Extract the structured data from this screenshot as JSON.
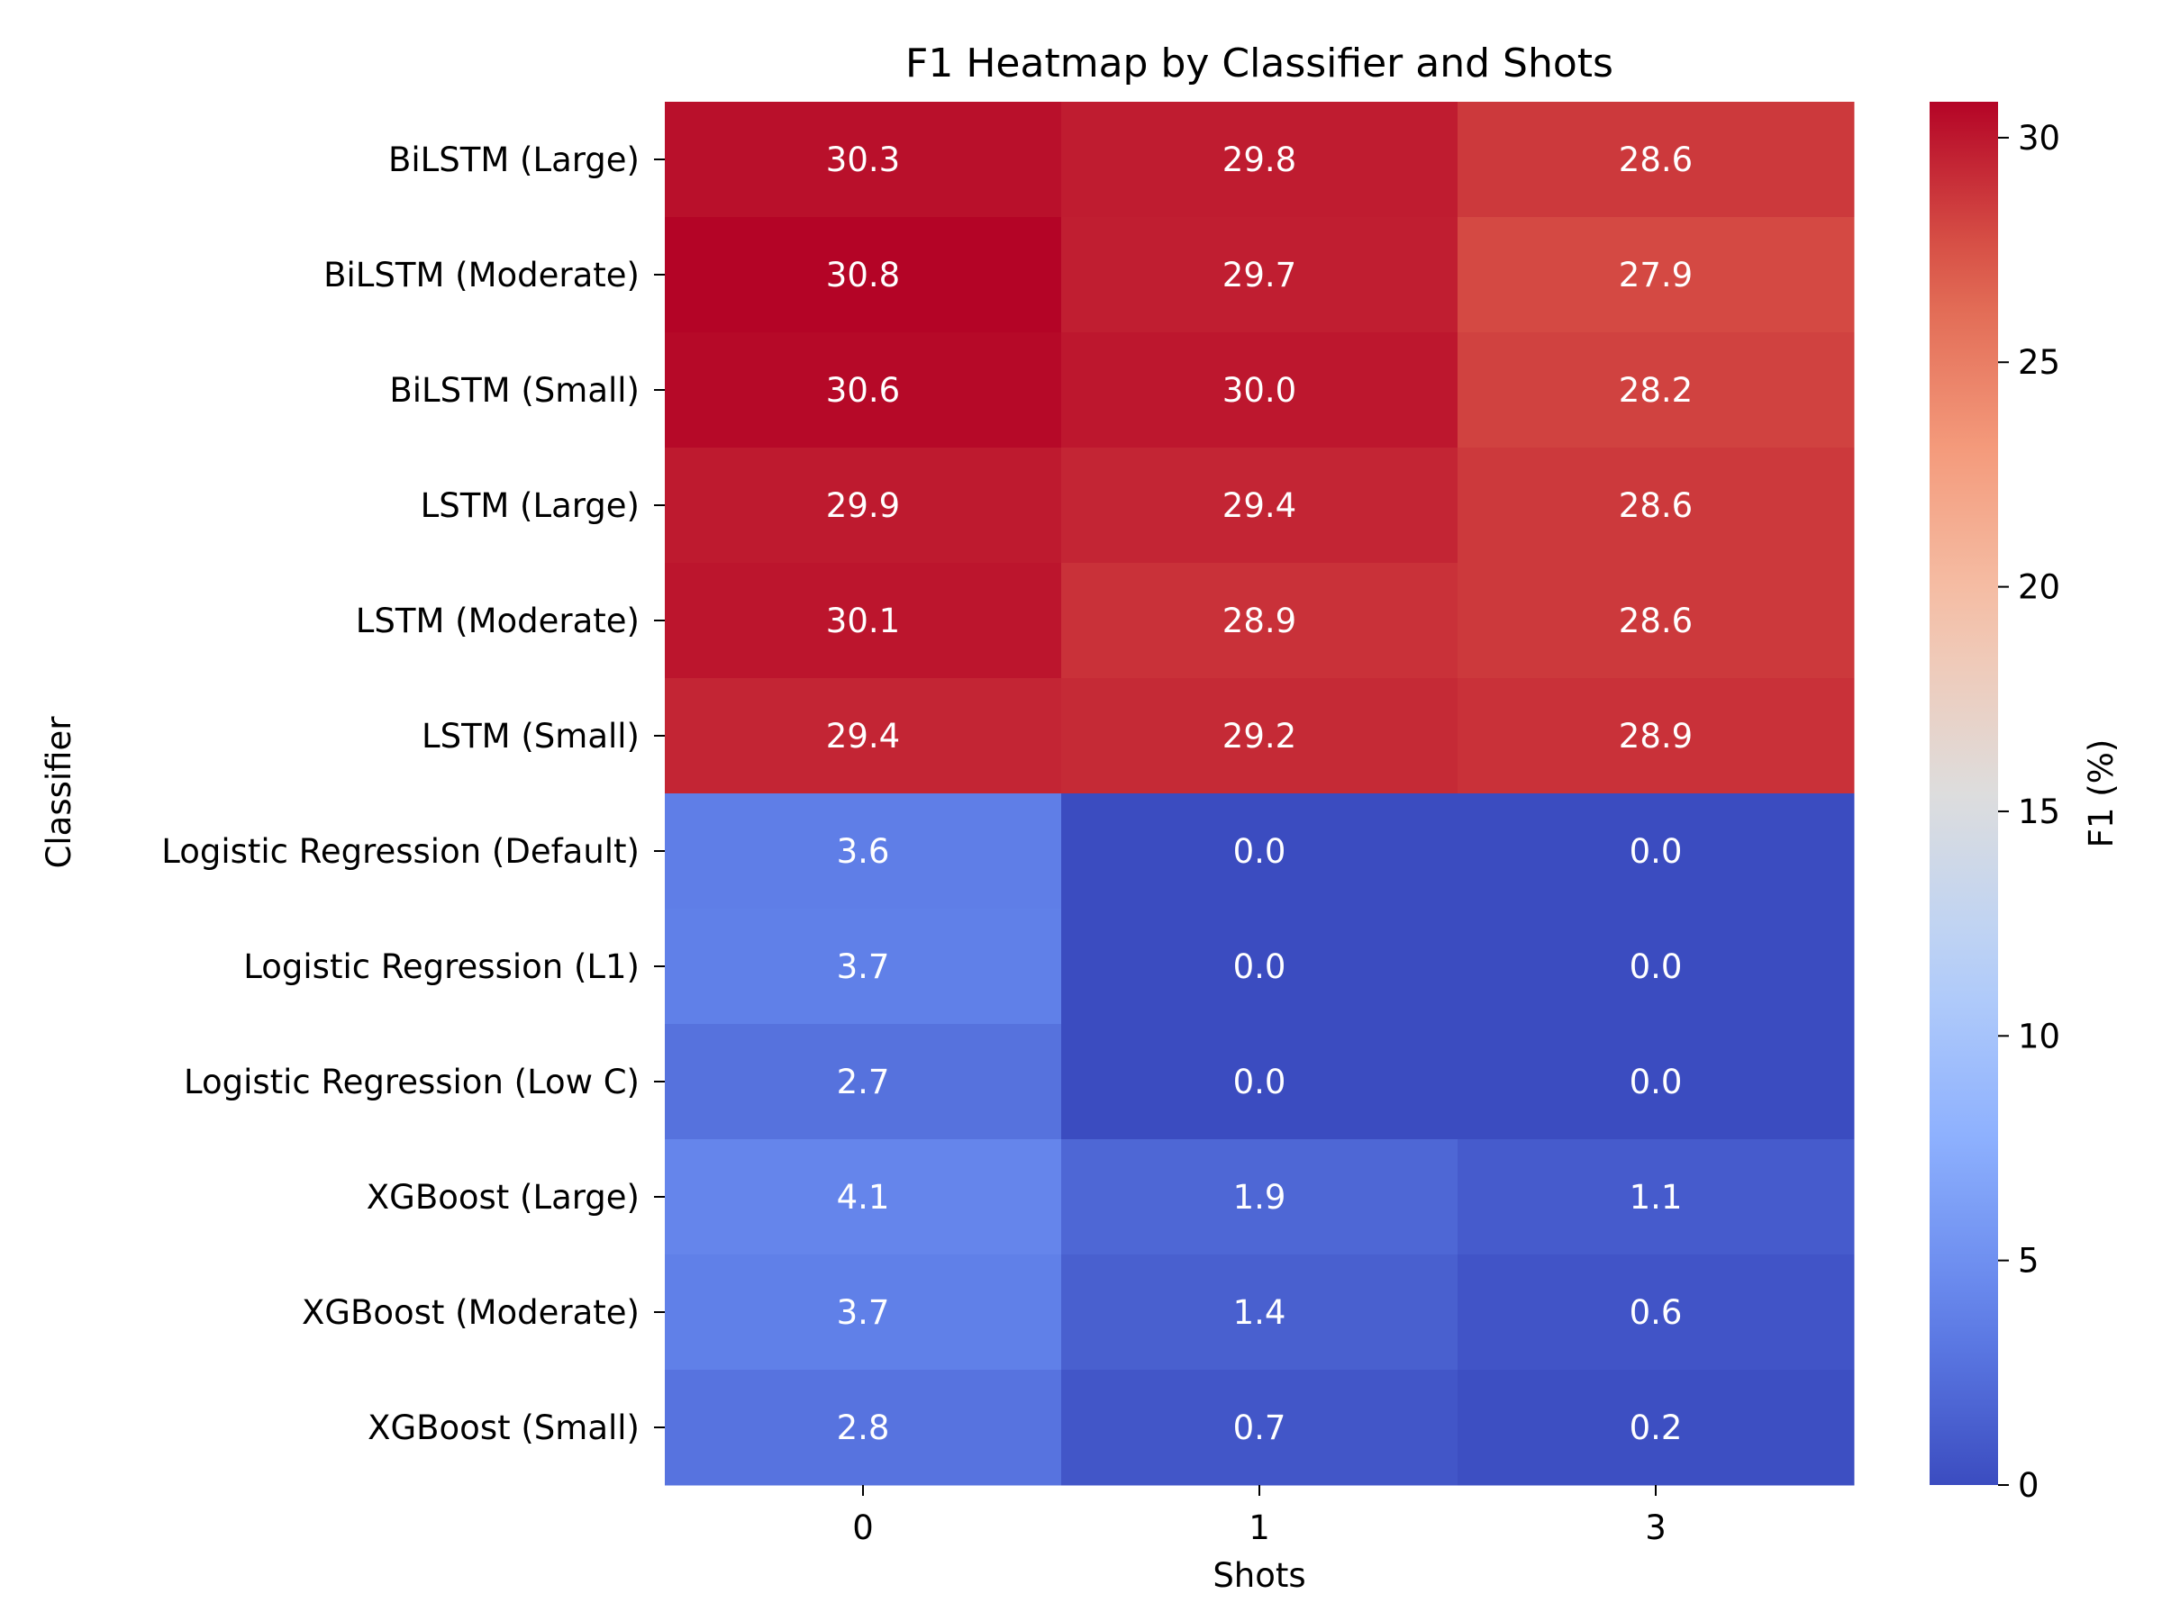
{
  "chart_data": {
    "type": "heatmap",
    "title": "F1 Heatmap by Classifier and Shots",
    "xlabel": "Shots",
    "ylabel": "Classifier",
    "x_categories": [
      "0",
      "1",
      "3"
    ],
    "y_categories": [
      "BiLSTM (Large)",
      "BiLSTM (Moderate)",
      "BiLSTM (Small)",
      "LSTM (Large)",
      "LSTM (Moderate)",
      "LSTM (Small)",
      "Logistic Regression (Default)",
      "Logistic Regression (L1)",
      "Logistic Regression (Low C)",
      "XGBoost (Large)",
      "XGBoost (Moderate)",
      "XGBoost (Small)"
    ],
    "values": [
      [
        30.3,
        29.8,
        28.6
      ],
      [
        30.8,
        29.7,
        27.9
      ],
      [
        30.6,
        30.0,
        28.2
      ],
      [
        29.9,
        29.4,
        28.6
      ],
      [
        30.1,
        28.9,
        28.6
      ],
      [
        29.4,
        29.2,
        28.9
      ],
      [
        3.6,
        0.0,
        0.0
      ],
      [
        3.7,
        0.0,
        0.0
      ],
      [
        2.7,
        0.0,
        0.0
      ],
      [
        4.1,
        1.9,
        1.1
      ],
      [
        3.7,
        1.4,
        0.6
      ],
      [
        2.8,
        0.7,
        0.2
      ]
    ],
    "value_labels": [
      [
        "30.3",
        "29.8",
        "28.6"
      ],
      [
        "30.8",
        "29.7",
        "27.9"
      ],
      [
        "30.6",
        "30.0",
        "28.2"
      ],
      [
        "29.9",
        "29.4",
        "28.6"
      ],
      [
        "30.1",
        "28.9",
        "28.6"
      ],
      [
        "29.4",
        "29.2",
        "28.9"
      ],
      [
        "3.6",
        "0.0",
        "0.0"
      ],
      [
        "3.7",
        "0.0",
        "0.0"
      ],
      [
        "2.7",
        "0.0",
        "0.0"
      ],
      [
        "4.1",
        "1.9",
        "1.1"
      ],
      [
        "3.7",
        "1.4",
        "0.6"
      ],
      [
        "2.8",
        "0.7",
        "0.2"
      ]
    ],
    "colorbar": {
      "label": "F1 (%)",
      "colormap": "coolwarm",
      "range": [
        0,
        30.8
      ],
      "ticks": [
        0,
        5,
        10,
        15,
        20,
        25,
        30
      ],
      "tick_labels": [
        "0",
        "5",
        "10",
        "15",
        "20",
        "25",
        "30"
      ]
    },
    "colors": [
      "#3b4cc0",
      "#dddddd",
      "#b40426"
    ]
  }
}
